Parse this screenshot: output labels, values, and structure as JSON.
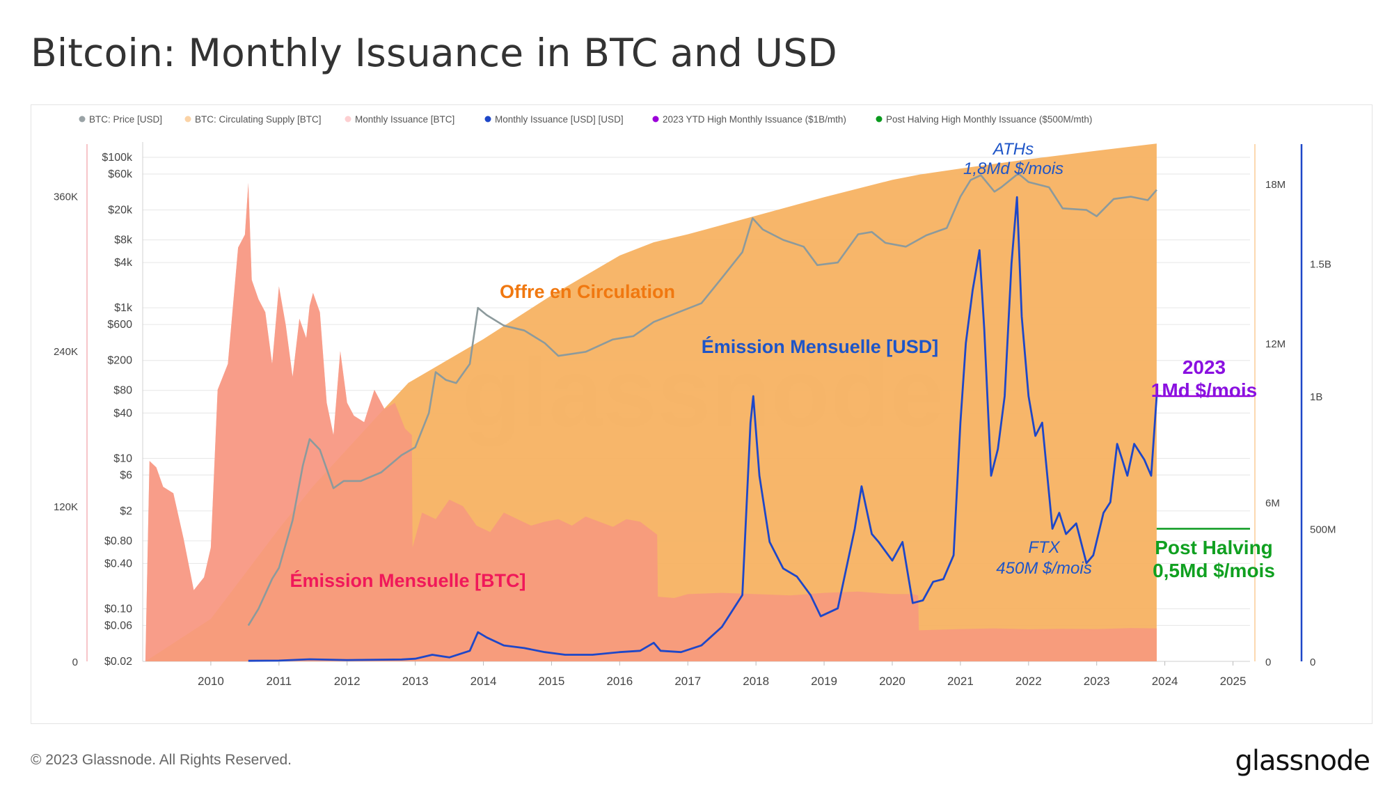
{
  "page": {
    "title": "Bitcoin: Monthly Issuance in BTC and USD",
    "copyright": "© 2023 Glassnode. All Rights Reserved.",
    "brand": "glassnode",
    "watermark": "glassnode"
  },
  "colors": {
    "price": "#8c9a9c",
    "supply": "#f7b262",
    "issuance_btc": "#fdb6b8",
    "issuance_btc_overlap": "#f79880",
    "issuance_usd": "#1e47c8",
    "ytd_high": "#9b00d9",
    "post_halving": "#0a9a1e",
    "annot_orange": "#f07810",
    "annot_red": "#f0185a",
    "annot_blue": "#1e55c8"
  },
  "chart_data": {
    "type": "area",
    "title": "Bitcoin: Monthly Issuance in BTC and USD",
    "legend": {
      "placement": "top-left",
      "items": [
        {
          "label": "BTC: Price [USD]",
          "color": "#9aa3a6"
        },
        {
          "label": "BTC: Circulating Supply [BTC]",
          "color": "#fbd3a6"
        },
        {
          "label": "Monthly Issuance [BTC]",
          "color": "#fdcfd1"
        },
        {
          "label": "Monthly Issuance [USD] [USD]",
          "color": "#1e47c8"
        },
        {
          "label": "2023 YTD High Monthly Issuance ($1B/mth)",
          "color": "#9b00d9"
        },
        {
          "label": "Post Halving High Monthly Issuance ($500M/mth)",
          "color": "#0a9a1e"
        }
      ]
    },
    "x_ticks": [
      "2010",
      "2011",
      "2012",
      "2013",
      "2014",
      "2015",
      "2016",
      "2017",
      "2018",
      "2019",
      "2020",
      "2021",
      "2022",
      "2023",
      "2024",
      "2025"
    ],
    "x_range": [
      2009.0,
      2025.25
    ],
    "axes": {
      "issuance_btc": {
        "side": "left-outer",
        "range": [
          0,
          400000
        ],
        "ticks": [
          "0",
          "120K",
          "240K",
          "360K"
        ]
      },
      "price": {
        "side": "left-inner",
        "scale": "log",
        "range": [
          0.02,
          150000
        ],
        "ticks": [
          "$0.02",
          "$0.06",
          "$0.10",
          "$0.40",
          "$0.80",
          "$2",
          "$6",
          "$10",
          "$40",
          "$80",
          "$200",
          "$600",
          "$1k",
          "$4k",
          "$8k",
          "$20k",
          "$60k",
          "$100k"
        ]
      },
      "supply": {
        "side": "right-inner",
        "range": [
          0,
          19500000
        ],
        "ticks": [
          "0",
          "6M",
          "12M",
          "18M"
        ]
      },
      "issuance_usd": {
        "side": "right-outer",
        "range": [
          0,
          1950000000
        ],
        "ticks": [
          "0",
          "500M",
          "1B",
          "1.5B"
        ]
      }
    },
    "series": [
      {
        "name": "BTC: Circulating Supply [BTC]",
        "axis": "supply",
        "x": [
          2009.04,
          2010.0,
          2010.5,
          2011.0,
          2011.5,
          2012.0,
          2012.5,
          2012.9,
          2013.5,
          2014.0,
          2015.0,
          2016.0,
          2016.5,
          2017.0,
          2018.0,
          2019.0,
          2020.0,
          2020.4,
          2021.0,
          2022.0,
          2023.0,
          2023.88
        ],
        "y": [
          0,
          1600000,
          3300000,
          5000000,
          6600000,
          8000000,
          9400000,
          10500000,
          11400000,
          12150000,
          13800000,
          15300000,
          15800000,
          16100000,
          16800000,
          17500000,
          18150000,
          18350000,
          18580000,
          18930000,
          19250000,
          19520000
        ]
      },
      {
        "name": "Monthly Issuance [BTC]",
        "axis": "issuance_btc",
        "x": [
          2009.04,
          2009.1,
          2009.2,
          2009.3,
          2009.45,
          2009.6,
          2009.75,
          2009.9,
          2010.0,
          2010.1,
          2010.25,
          2010.4,
          2010.5,
          2010.55,
          2010.6,
          2010.7,
          2010.8,
          2010.9,
          2011.0,
          2011.1,
          2011.2,
          2011.3,
          2011.4,
          2011.45,
          2011.5,
          2011.6,
          2011.7,
          2011.8,
          2011.9,
          2012.0,
          2012.1,
          2012.25,
          2012.4,
          2012.55,
          2012.7,
          2012.85,
          2012.95,
          2012.96,
          2013.1,
          2013.3,
          2013.5,
          2013.7,
          2013.9,
          2014.1,
          2014.3,
          2014.5,
          2014.7,
          2014.9,
          2015.1,
          2015.3,
          2015.5,
          2015.7,
          2015.9,
          2016.1,
          2016.3,
          2016.5,
          2016.55,
          2016.56,
          2016.8,
          2017.0,
          2017.5,
          2018.0,
          2018.5,
          2019.0,
          2019.5,
          2020.0,
          2020.3,
          2020.38,
          2020.39,
          2020.7,
          2021.0,
          2021.5,
          2022.0,
          2022.5,
          2023.0,
          2023.5,
          2023.88
        ],
        "y": [
          0,
          155000,
          150000,
          135000,
          130000,
          95000,
          55000,
          65000,
          88000,
          210000,
          230000,
          320000,
          330000,
          370000,
          295000,
          280000,
          270000,
          230000,
          290000,
          260000,
          220000,
          265000,
          250000,
          275000,
          285000,
          270000,
          200000,
          175000,
          240000,
          200000,
          190000,
          185000,
          210000,
          195000,
          200000,
          180000,
          175000,
          88000,
          115000,
          110000,
          125000,
          120000,
          105000,
          100000,
          115000,
          110000,
          105000,
          108000,
          110000,
          105000,
          112000,
          108000,
          104000,
          110000,
          108000,
          100000,
          98000,
          50000,
          49000,
          52000,
          53000,
          52000,
          51000,
          53000,
          54000,
          52000,
          52000,
          51000,
          24000,
          24500,
          25000,
          25500,
          24800,
          25200,
          25000,
          25800,
          25500
        ]
      },
      {
        "name": "BTC: Price [USD]",
        "axis": "price",
        "x": [
          2010.55,
          2010.7,
          2010.9,
          2011.0,
          2011.2,
          2011.35,
          2011.45,
          2011.6,
          2011.8,
          2011.95,
          2012.2,
          2012.5,
          2012.8,
          2013.0,
          2013.2,
          2013.3,
          2013.45,
          2013.6,
          2013.8,
          2013.92,
          2014.05,
          2014.3,
          2014.6,
          2014.9,
          2015.1,
          2015.5,
          2015.9,
          2016.2,
          2016.5,
          2016.9,
          2017.2,
          2017.5,
          2017.8,
          2017.95,
          2018.1,
          2018.4,
          2018.7,
          2018.9,
          2019.2,
          2019.5,
          2019.7,
          2019.9,
          2020.2,
          2020.5,
          2020.8,
          2021.0,
          2021.15,
          2021.3,
          2021.5,
          2021.6,
          2021.85,
          2022.0,
          2022.3,
          2022.5,
          2022.85,
          2023.0,
          2023.25,
          2023.5,
          2023.75,
          2023.88
        ],
        "y": [
          0.06,
          0.1,
          0.25,
          0.35,
          1.5,
          8,
          18,
          13,
          4,
          5,
          5,
          6.5,
          11,
          14,
          40,
          140,
          110,
          100,
          180,
          1000,
          800,
          580,
          500,
          340,
          230,
          260,
          380,
          420,
          650,
          900,
          1150,
          2500,
          5500,
          15500,
          11000,
          8000,
          6500,
          3700,
          4000,
          9500,
          10200,
          7300,
          6500,
          9200,
          11500,
          30000,
          50000,
          58000,
          35000,
          40000,
          61000,
          47000,
          40000,
          21000,
          20000,
          16500,
          28000,
          30000,
          27000,
          37000
        ]
      },
      {
        "name": "Monthly Issuance [USD] [USD]",
        "axis": "issuance_usd",
        "x": [
          2010.55,
          2011.0,
          2011.45,
          2012.0,
          2012.8,
          2013.0,
          2013.25,
          2013.5,
          2013.8,
          2013.92,
          2014.05,
          2014.3,
          2014.6,
          2014.9,
          2015.2,
          2015.6,
          2016.0,
          2016.3,
          2016.5,
          2016.6,
          2016.9,
          2017.2,
          2017.5,
          2017.8,
          2017.92,
          2017.96,
          2018.05,
          2018.2,
          2018.4,
          2018.6,
          2018.8,
          2018.95,
          2019.2,
          2019.45,
          2019.55,
          2019.7,
          2019.8,
          2020.0,
          2020.15,
          2020.3,
          2020.45,
          2020.6,
          2020.75,
          2020.9,
          2021.0,
          2021.08,
          2021.18,
          2021.28,
          2021.35,
          2021.45,
          2021.55,
          2021.65,
          2021.75,
          2021.83,
          2021.9,
          2022.0,
          2022.1,
          2022.2,
          2022.35,
          2022.45,
          2022.55,
          2022.7,
          2022.85,
          2022.95,
          2023.1,
          2023.2,
          2023.3,
          2023.45,
          2023.55,
          2023.7,
          2023.8,
          2023.88
        ],
        "y": [
          2000000,
          3000000,
          8000000,
          5000000,
          7000000,
          10000000,
          25000000,
          15000000,
          40000000,
          110000000,
          90000000,
          60000000,
          50000000,
          35000000,
          25000000,
          25000000,
          35000000,
          40000000,
          70000000,
          40000000,
          35000000,
          60000000,
          130000000,
          250000000,
          900000000,
          1000000000,
          700000000,
          450000000,
          350000000,
          320000000,
          250000000,
          170000000,
          200000000,
          500000000,
          660000000,
          480000000,
          450000000,
          380000000,
          450000000,
          220000000,
          230000000,
          300000000,
          310000000,
          400000000,
          900000000,
          1200000000,
          1400000000,
          1550000000,
          1250000000,
          700000000,
          800000000,
          1000000000,
          1500000000,
          1750000000,
          1300000000,
          1000000000,
          850000000,
          900000000,
          500000000,
          560000000,
          480000000,
          520000000,
          370000000,
          400000000,
          560000000,
          600000000,
          820000000,
          700000000,
          820000000,
          760000000,
          700000000,
          1000000000
        ]
      }
    ],
    "reference_lines": [
      {
        "name": "2023 YTD High Monthly Issuance ($1B/mth)",
        "axis": "issuance_usd",
        "y": 1000000000,
        "x": [
          2023.88,
          2025.25
        ]
      },
      {
        "name": "Post Halving High Monthly Issuance ($500M/mth)",
        "axis": "issuance_usd",
        "y": 500000000,
        "x": [
          2023.88,
          2025.25
        ]
      }
    ],
    "annotations": [
      {
        "text": "Offre en Circulation",
        "color": "#f07810",
        "bold": true,
        "italic": false,
        "size": 27
      },
      {
        "text": "Émission Mensuelle [USD]",
        "color": "#1e55c8",
        "bold": true,
        "italic": false,
        "size": 27
      },
      {
        "text": "Émission Mensuelle [BTC]",
        "color": "#f0185a",
        "bold": true,
        "italic": false,
        "size": 27
      },
      {
        "text": "ATHs",
        "color": "#1e55c8",
        "bold": false,
        "italic": true,
        "size": 24
      },
      {
        "text": "1,8Md $/mois",
        "color": "#1e55c8",
        "bold": false,
        "italic": true,
        "size": 24
      },
      {
        "text": "FTX",
        "color": "#1e55c8",
        "bold": false,
        "italic": true,
        "size": 24
      },
      {
        "text": "450M $/mois",
        "color": "#1e55c8",
        "bold": false,
        "italic": true,
        "size": 24
      },
      {
        "text": "2023",
        "color": "#8a10e0",
        "bold": true,
        "italic": false,
        "size": 28
      },
      {
        "text": "1Md $/mois",
        "color": "#8a10e0",
        "bold": true,
        "italic": false,
        "size": 28
      },
      {
        "text": "Post Halving",
        "color": "#10a020",
        "bold": true,
        "italic": false,
        "size": 28
      },
      {
        "text": "0,5Md $/mois",
        "color": "#10a020",
        "bold": true,
        "italic": false,
        "size": 28
      }
    ]
  }
}
